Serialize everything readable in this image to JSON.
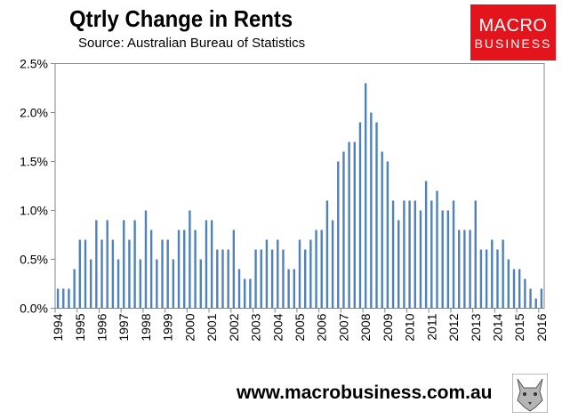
{
  "header": {
    "title": "Qtrly Change in Rents",
    "subtitle": "Source: Australian Bureau of Statistics"
  },
  "logo": {
    "line1": "MACRO",
    "line2": "BUSINESS",
    "color": "#e3141c"
  },
  "footer": {
    "url": "www.macrobusiness.com.au",
    "fox_icon": "fox-icon"
  },
  "chart_data": {
    "type": "bar",
    "title": "Qtrly Change in Rents",
    "xlabel": "",
    "ylabel": "",
    "ylim": [
      0,
      2.5
    ],
    "yticks": [
      "0.0%",
      "0.5%",
      "1.0%",
      "1.5%",
      "2.0%",
      "2.5%"
    ],
    "year_labels": [
      "1994",
      "1995",
      "1996",
      "1997",
      "1998",
      "1999",
      "2000",
      "2001",
      "2002",
      "2003",
      "2004",
      "2005",
      "2006",
      "2007",
      "2008",
      "2009",
      "2010",
      "2011",
      "2012",
      "2013",
      "2014",
      "2015",
      "2016"
    ],
    "bar_color": "#4f81bd",
    "series": [
      {
        "name": "Qtrly Change in Rents",
        "values": [
          0.2,
          0.2,
          0.2,
          0.4,
          0.7,
          0.7,
          0.5,
          0.9,
          0.7,
          0.9,
          0.7,
          0.5,
          0.9,
          0.7,
          0.9,
          0.5,
          1.0,
          0.8,
          0.5,
          0.7,
          0.7,
          0.5,
          0.8,
          0.8,
          1.0,
          0.8,
          0.5,
          0.9,
          0.9,
          0.6,
          0.6,
          0.6,
          0.8,
          0.4,
          0.3,
          0.3,
          0.6,
          0.6,
          0.7,
          0.6,
          0.7,
          0.6,
          0.4,
          0.4,
          0.7,
          0.6,
          0.7,
          0.8,
          0.8,
          1.1,
          0.9,
          1.5,
          1.6,
          1.7,
          1.7,
          1.9,
          2.3,
          2.0,
          1.9,
          1.6,
          1.5,
          1.1,
          0.9,
          1.1,
          1.1,
          1.1,
          1.0,
          1.3,
          1.1,
          1.2,
          1.0,
          1.0,
          1.1,
          0.8,
          0.8,
          0.8,
          1.1,
          0.6,
          0.6,
          0.7,
          0.6,
          0.7,
          0.5,
          0.4,
          0.4,
          0.3,
          0.2,
          0.1,
          0.2
        ]
      }
    ]
  }
}
